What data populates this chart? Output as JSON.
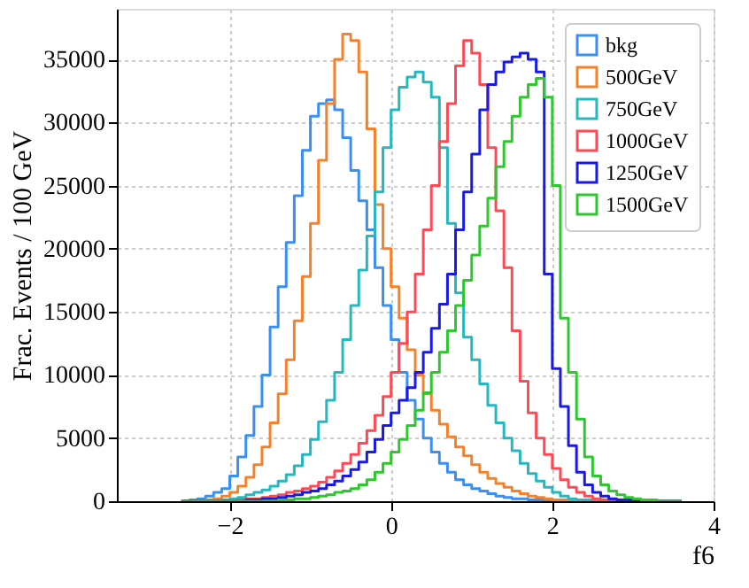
{
  "chart_data": {
    "type": "histogram",
    "xlabel": "f6",
    "ylabel": "Frac. Events / 100 GeV",
    "xlim": [
      -3.4,
      4
    ],
    "xticks": [
      -2,
      0,
      2,
      4
    ],
    "ylim": [
      0,
      39000
    ],
    "yticks": [
      0,
      5000,
      10000,
      15000,
      20000,
      25000,
      30000,
      35000
    ],
    "grid": true,
    "legend": "top right",
    "bins": [
      -2.6,
      -2.5,
      -2.4,
      -2.3,
      -2.2,
      -2.1,
      -2.0,
      -1.9,
      -1.8,
      -1.7,
      -1.6,
      -1.5,
      -1.4,
      -1.3,
      -1.2,
      -1.1,
      -1.0,
      -0.9,
      -0.8,
      -0.7,
      -0.6,
      -0.5,
      -0.4,
      -0.3,
      -0.2,
      -0.1,
      0.0,
      0.1,
      0.2,
      0.3,
      0.4,
      0.5,
      0.6,
      0.7,
      0.8,
      0.9,
      1.0,
      1.1,
      1.2,
      1.3,
      1.4,
      1.5,
      1.6,
      1.7,
      1.8,
      1.9,
      2.0,
      2.1,
      2.2,
      2.3,
      2.4,
      2.5,
      2.6,
      2.7,
      2.8,
      2.9,
      3.0,
      3.1,
      3.2,
      3.3,
      3.4,
      3.5,
      3.6
    ],
    "series": [
      {
        "name": "bkg",
        "color": "#3a8ff0",
        "values": [
          0,
          100,
          200,
          400,
          700,
          1000,
          2000,
          3500,
          5200,
          7500,
          10000,
          13800,
          17000,
          20500,
          24200,
          27800,
          30500,
          31500,
          31800,
          31000,
          28800,
          26200,
          23800,
          21500,
          18500,
          15500,
          12800,
          10200,
          8000,
          6500,
          5000,
          3900,
          3000,
          2300,
          1700,
          1300,
          1000,
          800,
          600,
          400,
          300,
          200,
          200,
          100,
          100,
          100,
          0,
          0,
          0,
          0,
          0,
          0,
          0,
          0,
          0,
          0,
          0,
          0,
          0,
          0,
          0,
          0
        ]
      },
      {
        "name": "500GeV",
        "color": "#f5822a",
        "values": [
          0,
          0,
          0,
          100,
          200,
          400,
          700,
          1200,
          1900,
          2900,
          4300,
          6200,
          8500,
          11200,
          14300,
          17800,
          22000,
          27000,
          31500,
          35000,
          37000,
          36500,
          34000,
          29500,
          23500,
          20000,
          17000,
          14500,
          12000,
          10000,
          8500,
          7200,
          6100,
          5100,
          4300,
          3600,
          2900,
          2300,
          1800,
          1400,
          1100,
          800,
          600,
          400,
          300,
          200,
          100,
          100,
          0,
          0,
          0,
          0,
          0,
          0,
          0,
          0,
          0,
          0,
          0,
          0,
          0,
          0
        ]
      },
      {
        "name": "750GeV",
        "color": "#26b7bf",
        "values": [
          0,
          0,
          0,
          0,
          0,
          100,
          200,
          300,
          500,
          700,
          900,
          1200,
          1600,
          2100,
          2800,
          3700,
          4900,
          6300,
          8000,
          10200,
          12800,
          15500,
          18300,
          21000,
          24500,
          28000,
          31000,
          32800,
          33600,
          34000,
          33200,
          32000,
          28000,
          22000,
          16500,
          13000,
          11200,
          9300,
          7600,
          6200,
          5000,
          4000,
          3000,
          2200,
          1600,
          1100,
          700,
          400,
          200,
          100,
          100,
          0,
          0,
          0,
          0,
          0,
          0,
          0,
          0,
          0,
          0,
          0
        ]
      },
      {
        "name": "1000GeV",
        "color": "#ff4a55",
        "values": [
          0,
          0,
          0,
          0,
          0,
          0,
          0,
          100,
          200,
          200,
          300,
          400,
          500,
          700,
          800,
          1000,
          1200,
          1500,
          1900,
          2400,
          3000,
          3700,
          4600,
          5600,
          6800,
          8300,
          10200,
          12500,
          15000,
          18000,
          21500,
          25000,
          28500,
          31500,
          34500,
          36500,
          35500,
          33000,
          28000,
          23000,
          18500,
          13500,
          9500,
          7000,
          5000,
          3700,
          2600,
          1700,
          1100,
          700,
          400,
          200,
          100,
          100,
          0,
          0,
          0,
          0,
          0,
          0,
          0,
          0
        ]
      },
      {
        "name": "1250GeV",
        "color": "#1a1ae6",
        "values": [
          0,
          0,
          0,
          0,
          0,
          0,
          0,
          0,
          100,
          100,
          200,
          200,
          300,
          400,
          500,
          700,
          800,
          1000,
          1300,
          1600,
          2000,
          2500,
          3100,
          3900,
          4900,
          6000,
          7000,
          8000,
          9000,
          10200,
          11800,
          13700,
          15600,
          18000,
          21500,
          24500,
          27500,
          31000,
          33000,
          34000,
          34800,
          35200,
          35500,
          35000,
          34000,
          18000,
          10500,
          7500,
          4400,
          2300,
          1300,
          700,
          400,
          200,
          100,
          100,
          0,
          0,
          0,
          0,
          0,
          0
        ]
      },
      {
        "name": "1500GeV",
        "color": "#2ec82e",
        "values": [
          0,
          0,
          0,
          0,
          0,
          0,
          0,
          0,
          0,
          0,
          0,
          0,
          100,
          100,
          200,
          200,
          300,
          400,
          500,
          700,
          800,
          1000,
          1300,
          1700,
          2300,
          3000,
          3900,
          4900,
          6000,
          7200,
          8600,
          10200,
          11800,
          13500,
          15500,
          17500,
          19500,
          21800,
          24000,
          26500,
          28500,
          30500,
          32000,
          33000,
          33500,
          32000,
          25000,
          14500,
          10200,
          6500,
          3500,
          2000,
          1300,
          800,
          500,
          300,
          200,
          100,
          100,
          0,
          0,
          0
        ]
      }
    ]
  }
}
